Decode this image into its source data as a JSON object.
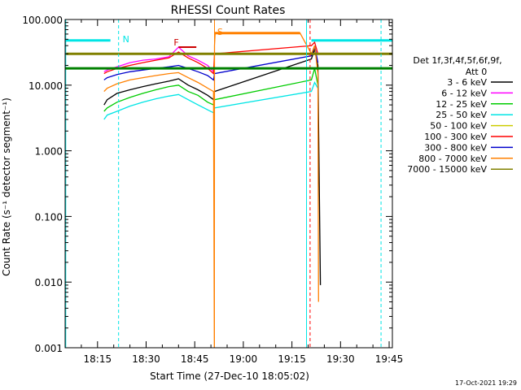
{
  "chart_data": {
    "type": "line",
    "title": "RHESSI Count Rates",
    "xlabel": "Start Time (27-Dec-10 18:05:02)",
    "ylabel": "Count Rate (s⁻¹ detector segment⁻¹)",
    "x_unit": "minutes after 18:05:02",
    "xlim": [
      0,
      101
    ],
    "ylim": [
      0.001,
      100
    ],
    "yscale": "log",
    "x_ticks": [
      {
        "value": 10.0,
        "label": "18:15"
      },
      {
        "value": 25.0,
        "label": "18:30"
      },
      {
        "value": 40.0,
        "label": "18:45"
      },
      {
        "value": 55.0,
        "label": "19:00"
      },
      {
        "value": 70.0,
        "label": "19:15"
      },
      {
        "value": 85.0,
        "label": "19:30"
      },
      {
        "value": 100.0,
        "label": "19:45"
      }
    ],
    "y_ticks": [
      {
        "value": 0.001,
        "label": "0.001"
      },
      {
        "value": 0.01,
        "label": "0.010"
      },
      {
        "value": 0.1,
        "label": "0.100"
      },
      {
        "value": 1,
        "label": "1.000"
      },
      {
        "value": 10,
        "label": "10.000"
      },
      {
        "value": 100,
        "label": "100.000"
      }
    ],
    "legend": {
      "header1": "Det 1f,3f,4f,5f,6f,9f,",
      "header2": "Att 0",
      "position": "right"
    },
    "series": [
      {
        "name": "3 - 6 keV",
        "color": "#000000",
        "x": [
          12.0,
          13.0,
          16.0,
          20.0,
          24.0,
          28.0,
          32.0,
          35.0,
          38.0,
          41.0,
          44.0,
          45.8,
          46.1,
          76.0,
          77.0,
          78.0,
          78.8
        ],
        "y": [
          5.0,
          6.0,
          7.5,
          8.5,
          9.5,
          10.5,
          11.5,
          12.5,
          10.0,
          8.5,
          7.0,
          6.0,
          8.0,
          25.0,
          35.0,
          20.0,
          0.009
        ]
      },
      {
        "name": "6 - 12 keV",
        "color": "#ff00ff",
        "x": [
          12.0,
          13.0,
          16.0,
          20.0,
          24.0,
          28.0,
          32.0,
          35.0,
          38.0,
          41.0,
          44.0,
          45.8,
          46.1
        ],
        "y": [
          16.0,
          17.0,
          19.0,
          22.0,
          24.0,
          25.0,
          27.0,
          38.0,
          28.0,
          24.0,
          20.0,
          16.0,
          18.0
        ]
      },
      {
        "name": "12 - 25 keV",
        "color": "#00cc00",
        "x": [
          12.0,
          13.0,
          16.0,
          20.0,
          24.0,
          28.0,
          32.0,
          35.0,
          38.0,
          41.0,
          44.0,
          45.8,
          46.1,
          76.0,
          77.0,
          78.0
        ],
        "y": [
          4.0,
          4.5,
          5.5,
          6.5,
          7.5,
          8.5,
          9.5,
          10.0,
          8.0,
          7.0,
          5.5,
          5.0,
          6.0,
          12.0,
          18.0,
          10.0
        ]
      },
      {
        "name": "25 - 50 keV",
        "color": "#00e5e5",
        "x": [
          12.0,
          13.0,
          16.0,
          20.0,
          24.0,
          28.0,
          32.0,
          35.0,
          38.0,
          41.0,
          44.0,
          45.8,
          46.1,
          76.0,
          77.0,
          78.0
        ],
        "y": [
          3.0,
          3.5,
          4.0,
          4.8,
          5.5,
          6.2,
          6.8,
          7.2,
          6.0,
          5.0,
          4.2,
          3.8,
          4.5,
          8.0,
          11.0,
          9.0
        ]
      },
      {
        "name": "50 - 100 keV",
        "color": "#cccc00",
        "x": [],
        "y": []
      },
      {
        "name": "100 - 300 keV",
        "color": "#ff0000",
        "x": [
          12.0,
          13.0,
          16.0,
          20.0,
          24.0,
          28.0,
          32.0,
          35.0,
          38.0,
          41.0,
          44.0,
          45.8,
          46.1,
          76.0,
          77.0,
          78.0
        ],
        "y": [
          15.0,
          16.0,
          18.0,
          20.0,
          22.0,
          24.0,
          26.0,
          32.0,
          26.0,
          22.0,
          18.0,
          15.0,
          30.0,
          40.0,
          45.0,
          30.0
        ]
      },
      {
        "name": "300 - 800 keV",
        "color": "#0000cc",
        "x": [
          12.0,
          13.0,
          16.0,
          20.0,
          24.0,
          28.0,
          32.0,
          35.0,
          38.0,
          41.0,
          44.0,
          45.8,
          46.1,
          76.0,
          77.0,
          78.0
        ],
        "y": [
          12.0,
          13.0,
          14.5,
          16.0,
          17.0,
          18.0,
          19.0,
          20.0,
          18.0,
          16.0,
          14.0,
          12.0,
          15.0,
          28.0,
          40.0,
          22.0
        ]
      },
      {
        "name": "800 - 7000 keV",
        "color": "#ff8000",
        "x": [
          12.0,
          13.0,
          16.0,
          20.0,
          24.0,
          28.0,
          32.0,
          35.0,
          38.0,
          41.0,
          44.0,
          45.8,
          46.05,
          46.1,
          46.3,
          46.5,
          65.0,
          72.5,
          76.0,
          77.0,
          78.0,
          78.2
        ],
        "y": [
          8.0,
          9.0,
          10.5,
          12.0,
          13.0,
          14.0,
          15.0,
          15.5,
          13.0,
          11.0,
          9.0,
          8.0,
          0.001,
          40.0,
          62.0,
          62.0,
          62.0,
          62.0,
          30.0,
          40.0,
          15.0,
          0.005
        ]
      },
      {
        "name": "7000 - 15000 keV",
        "color": "#808000",
        "x": [
          0,
          101
        ],
        "y": [
          30.0,
          30.0
        ]
      }
    ],
    "green_level": {
      "color": "#008000",
      "x": [
        0,
        101
      ],
      "y": [
        18.0,
        18.0
      ]
    },
    "annotations": [
      {
        "label": "N",
        "color": "#00e5e5",
        "x": 16.5,
        "y": 48.0,
        "hline": [
          0,
          16.5,
          48.0
        ],
        "hline2": [
          76.0,
          101,
          48.0
        ]
      },
      {
        "label": "S",
        "color": "#ff8000",
        "x": 45.7,
        "y": 62.0
      }
    ],
    "vlines": [
      {
        "color": "#00e5e5",
        "x": 0.2,
        "style": "solid"
      },
      {
        "color": "#00e5e5",
        "x": 16.5,
        "style": "dashed"
      },
      {
        "color": "#ff8000",
        "x": 46.1,
        "style": "solid"
      },
      {
        "color": "#00e5e5",
        "x": 74.5,
        "style": "solid"
      },
      {
        "color": "#ff0000",
        "x": 75.6,
        "style": "dashed"
      },
      {
        "color": "#00e5e5",
        "x": 97.5,
        "style": "dashed"
      }
    ],
    "flare_label": "F",
    "flare_color": "#cc0000",
    "footer_timestamp": "17-Oct-2021 19:29"
  }
}
